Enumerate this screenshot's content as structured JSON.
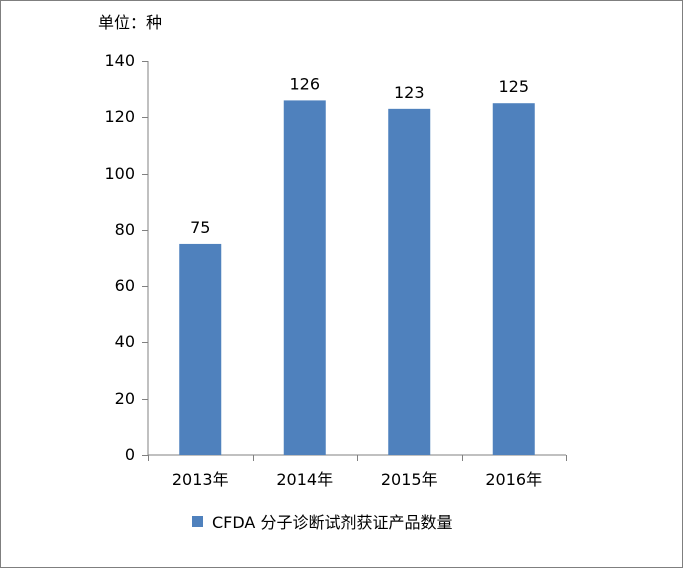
{
  "chart_data": {
    "type": "bar",
    "unit_label": "单位：种",
    "categories": [
      "2013年",
      "2014年",
      "2015年",
      "2016年"
    ],
    "series": [
      {
        "name": "CFDA 分子诊断试剂获证产品数量",
        "values": [
          75,
          126,
          123,
          125
        ],
        "color": "#4f81bd"
      }
    ],
    "ylim": [
      0,
      140
    ],
    "yticks": [
      0,
      20,
      40,
      60,
      80,
      100,
      120,
      140
    ],
    "grid": false,
    "legend_position": "bottom",
    "data_labels": true
  }
}
